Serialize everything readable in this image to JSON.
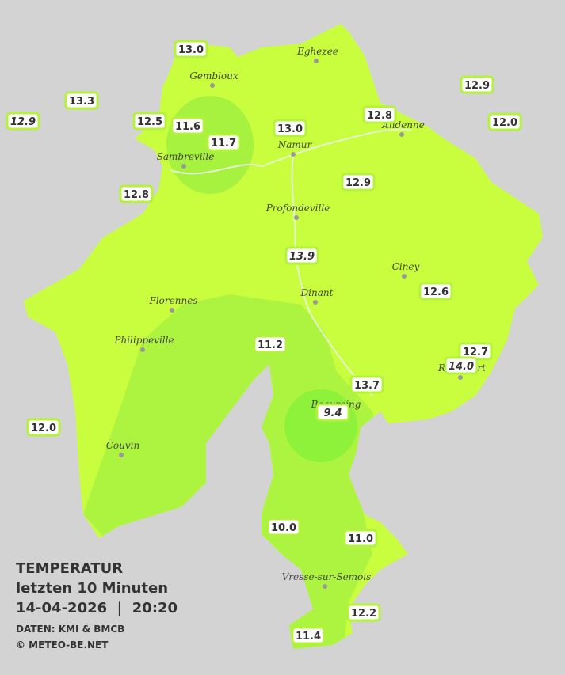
{
  "title": "TEMPERATUR",
  "subtitle": "letzten 10 Minuten",
  "datetime": "14-04-2026  |  20:20",
  "source": "DATEN: KMI & BMCB",
  "copyright": "© METEO-BE.NET",
  "cities": [
    "Eghezee",
    "Gembloux",
    "Andenne",
    "Namur",
    "Sambreville",
    "Profondeville",
    "Ciney",
    "Dinant",
    "Florennes",
    "Philippeville",
    "Rochefort",
    "Beauraing",
    "Couvin",
    "Vresse-sur-Semois"
  ],
  "stations": [
    {
      "text": "13.0",
      "italic": false
    },
    {
      "text": "13.3",
      "italic": false
    },
    {
      "text": "12.9",
      "italic": true
    },
    {
      "text": "12.5",
      "italic": false
    },
    {
      "text": "11.6",
      "italic": false
    },
    {
      "text": "11.7",
      "italic": false
    },
    {
      "text": "13.0",
      "italic": false
    },
    {
      "text": "12.8",
      "italic": false
    },
    {
      "text": "12.9",
      "italic": false
    },
    {
      "text": "12.0",
      "italic": false
    },
    {
      "text": "12.8",
      "italic": false
    },
    {
      "text": "12.9",
      "italic": false
    },
    {
      "text": "13.9",
      "italic": true
    },
    {
      "text": "12.6",
      "italic": false
    },
    {
      "text": "11.2",
      "italic": false
    },
    {
      "text": "12.7",
      "italic": false
    },
    {
      "text": "14.0",
      "italic": true
    },
    {
      "text": "13.7",
      "italic": false
    },
    {
      "text": "9.4",
      "italic": true
    },
    {
      "text": "12.0",
      "italic": false
    },
    {
      "text": "10.0",
      "italic": false
    },
    {
      "text": "11.0",
      "italic": false
    },
    {
      "text": "12.2",
      "italic": false
    },
    {
      "text": "11.4",
      "italic": false
    }
  ]
}
